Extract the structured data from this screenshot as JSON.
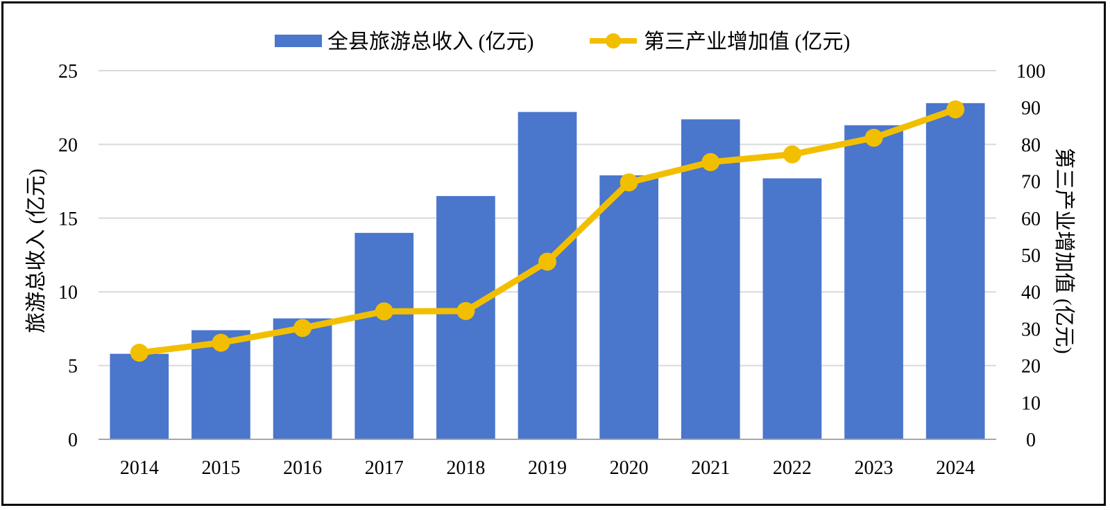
{
  "chart_data": {
    "type": "bar+line",
    "categories": [
      "2014",
      "2015",
      "2016",
      "2017",
      "2018",
      "2019",
      "2020",
      "2021",
      "2022",
      "2023",
      "2024"
    ],
    "series": [
      {
        "name": "全县旅游总收入 (亿元)",
        "type": "bar",
        "axis": "left",
        "color": "#4A76CC",
        "values": [
          5.8,
          7.4,
          8.2,
          14.0,
          16.5,
          22.2,
          17.9,
          21.7,
          17.7,
          21.3,
          22.8
        ]
      },
      {
        "name": "第三产业增加值 (亿元)",
        "type": "line",
        "axis": "right",
        "color": "#F2BF00",
        "values": [
          23.5,
          26.2,
          30.2,
          34.7,
          34.8,
          48.2,
          69.7,
          75.2,
          77.3,
          81.8,
          89.5
        ]
      }
    ],
    "ylabel_left": "旅游总收入 (亿元)",
    "ylabel_right": "第三产业增加值 (亿元)",
    "ylim_left": [
      0,
      25
    ],
    "ylim_right": [
      0,
      100
    ],
    "yticks_left": [
      "0",
      "5",
      "10",
      "15",
      "20",
      "25"
    ],
    "yticks_right": [
      "0",
      "10",
      "20",
      "30",
      "40",
      "50",
      "60",
      "70",
      "80",
      "90",
      "100"
    ],
    "grid": true,
    "legend": "top-center"
  }
}
